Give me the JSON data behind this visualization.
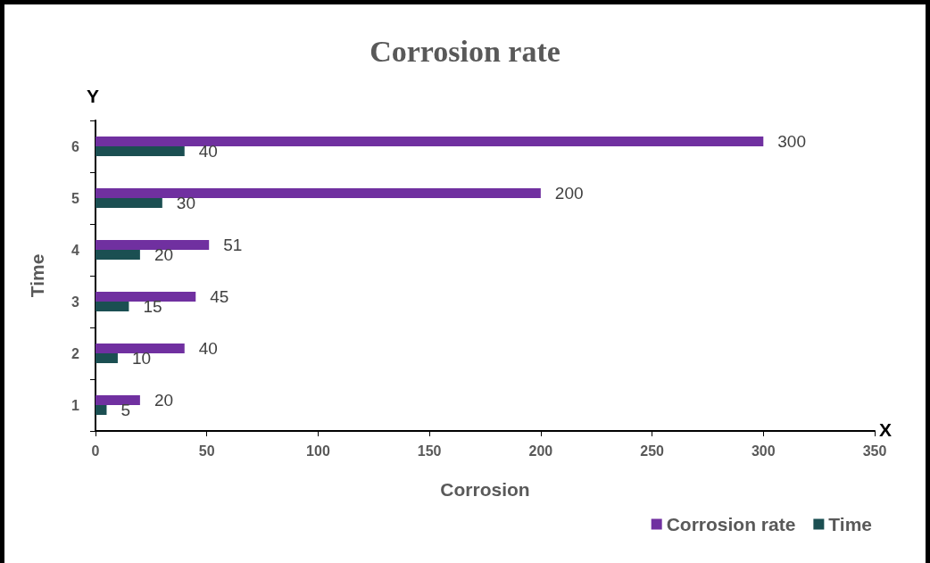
{
  "chart_data": {
    "type": "bar",
    "orientation": "horizontal",
    "title": "Corrosion rate",
    "xlabel": "Corrosion",
    "ylabel": "Time",
    "annotations": [
      "Y",
      "X"
    ],
    "categories": [
      "6",
      "5",
      "4",
      "3",
      "2",
      "1"
    ],
    "series": [
      {
        "name": "Corrosion rate",
        "color": "#7030a0",
        "values": [
          300,
          200,
          51,
          45,
          40,
          20
        ]
      },
      {
        "name": "Time",
        "color": "#1b4f52",
        "values": [
          40,
          30,
          20,
          15,
          10,
          5
        ]
      }
    ],
    "xlim": [
      0,
      350
    ],
    "xticks": [
      0,
      50,
      100,
      150,
      200,
      250,
      300,
      350
    ],
    "data_labels": true,
    "grid": false,
    "legend": "bottom right"
  }
}
